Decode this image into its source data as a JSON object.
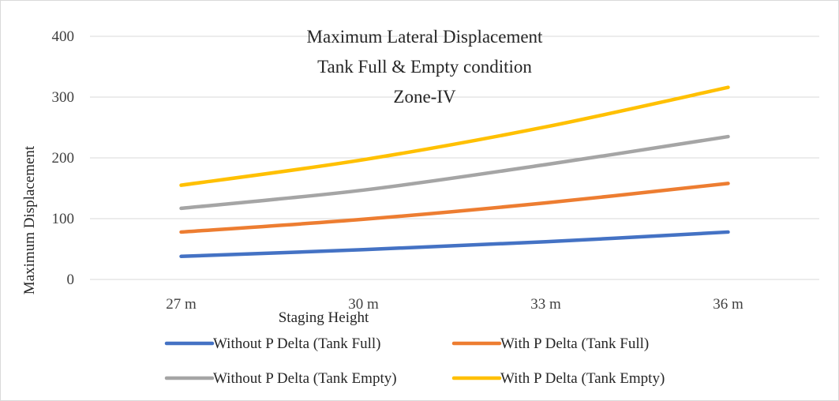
{
  "chart_data": {
    "type": "line",
    "title_lines": [
      "Maximum Lateral Displacement",
      "Tank Full & Empty condition",
      "Zone-IV"
    ],
    "xlabel": "Staging Height",
    "ylabel": "Maximum Displacement",
    "categories": [
      "27 m",
      "30 m",
      "33 m",
      "36 m"
    ],
    "ylim": [
      0,
      400
    ],
    "yticks": [
      0,
      100,
      200,
      300,
      400
    ],
    "grid": true,
    "legend_position": "bottom",
    "series": [
      {
        "name": "Without P Delta (Tank Full)",
        "color": "#4472C4",
        "values": [
          38,
          49,
          62,
          78
        ]
      },
      {
        "name": "With P Delta (Tank Full)",
        "color": "#ED7D31",
        "values": [
          78,
          99,
          126,
          158
        ]
      },
      {
        "name": "Without P Delta (Tank Empty)",
        "color": "#A5A5A5",
        "values": [
          117,
          147,
          189,
          235
        ]
      },
      {
        "name": "With P Delta (Tank Empty)",
        "color": "#FFC000",
        "values": [
          155,
          197,
          251,
          316
        ]
      }
    ]
  }
}
